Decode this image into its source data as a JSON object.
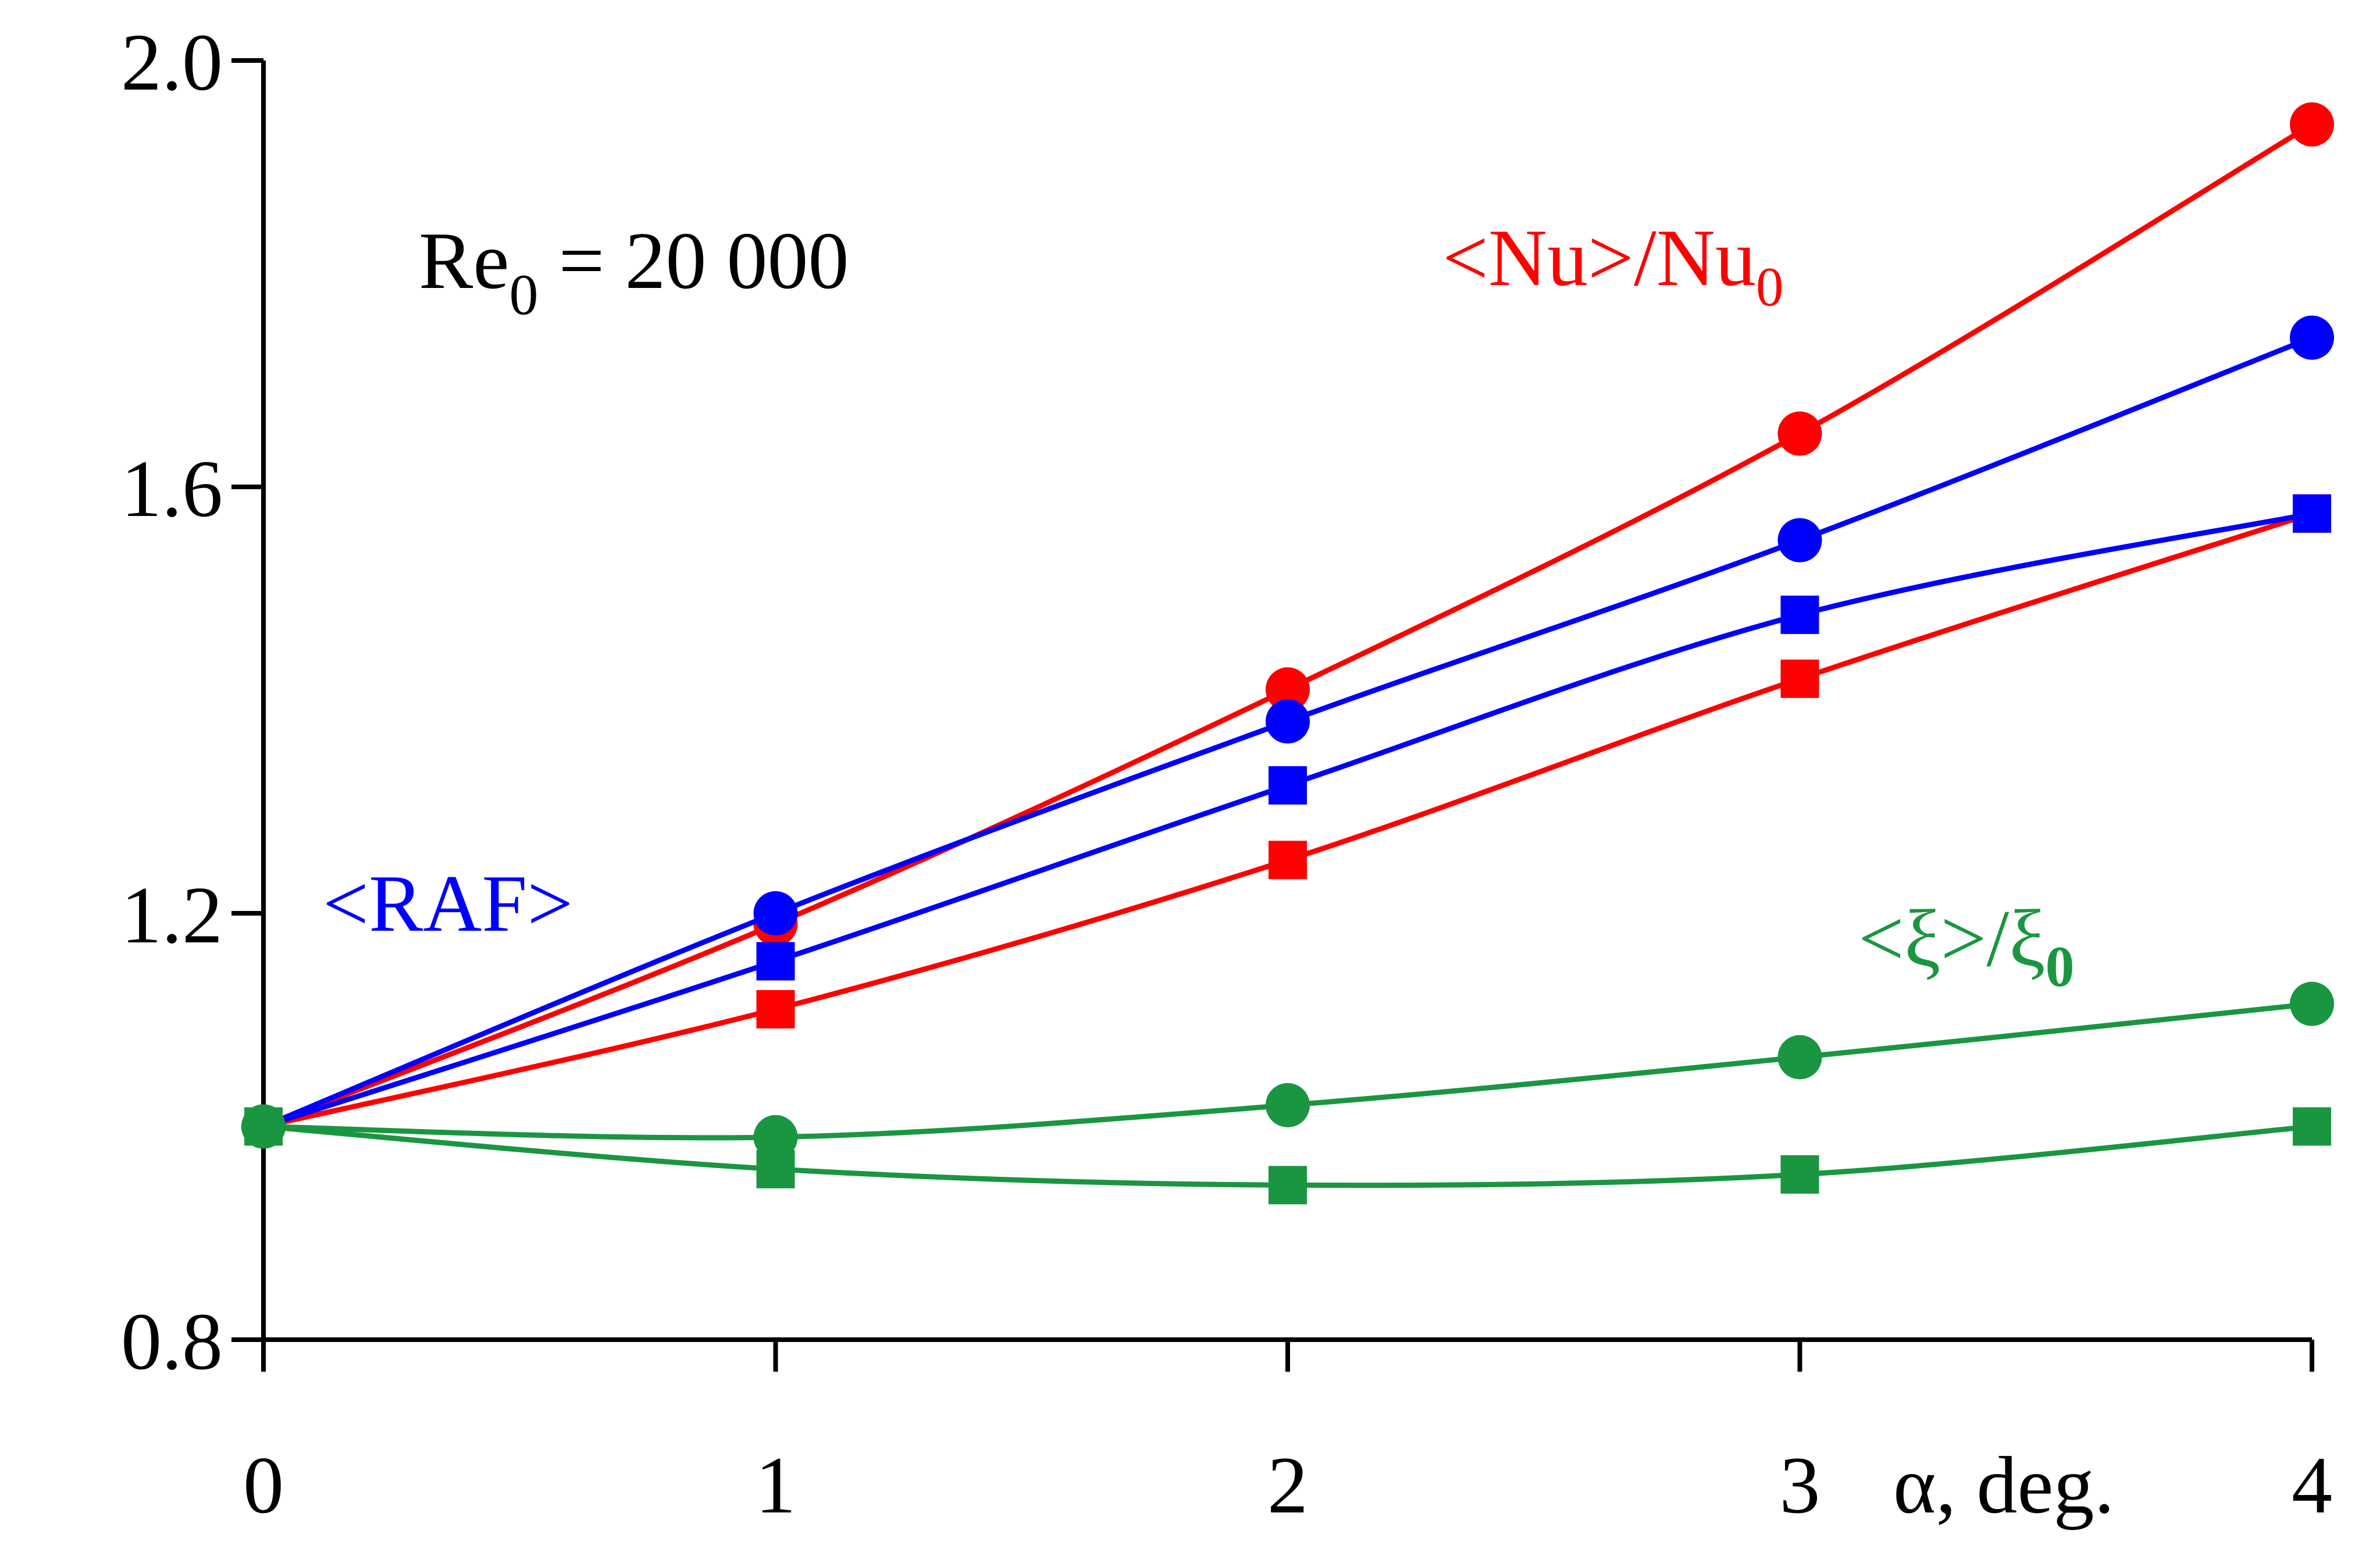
{
  "chart_data": {
    "type": "line",
    "x": [
      0,
      1,
      2,
      3,
      4
    ],
    "xlim": [
      0,
      4
    ],
    "ylim": [
      0.8,
      2.0
    ],
    "x_ticks": [
      "0",
      "1",
      "2",
      "3",
      "4"
    ],
    "y_ticks": [
      "0.8",
      "1.2",
      "1.6",
      "2.0"
    ],
    "xlabel": "α, deg.",
    "grid": false,
    "series": [
      {
        "group": "Nu",
        "marker": "circle",
        "color": "#ff0000",
        "values": [
          1.0,
          1.19,
          1.41,
          1.65,
          1.94
        ]
      },
      {
        "group": "Nu",
        "marker": "square",
        "color": "#ff0000",
        "values": [
          1.0,
          1.11,
          1.25,
          1.42,
          1.575
        ]
      },
      {
        "group": "RAF",
        "marker": "circle",
        "color": "#0000ff",
        "values": [
          1.0,
          1.2,
          1.38,
          1.55,
          1.74
        ]
      },
      {
        "group": "RAF",
        "marker": "square",
        "color": "#0000ff",
        "values": [
          1.0,
          1.155,
          1.32,
          1.48,
          1.575
        ]
      },
      {
        "group": "xi",
        "marker": "circle",
        "color": "#1a9641",
        "values": [
          1.0,
          0.99,
          1.02,
          1.065,
          1.115
        ]
      },
      {
        "group": "xi",
        "marker": "square",
        "color": "#1a9641",
        "values": [
          1.0,
          0.96,
          0.945,
          0.955,
          1.0
        ]
      }
    ],
    "annotations": {
      "re_main": "Re",
      "re_sub": "0",
      "re_rest": " = 20 000",
      "nu_main": "<Nu>/Nu",
      "nu_sub": "0",
      "raf": "<RAF>",
      "xi_main": "<ξ>/ξ",
      "xi_sub": "0"
    }
  }
}
